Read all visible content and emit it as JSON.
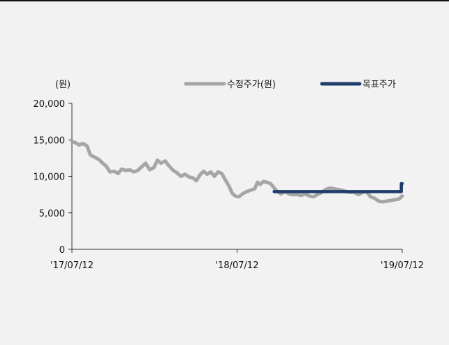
{
  "chart_data": {
    "type": "line",
    "unit_label": "(원)",
    "x_tick_labels": [
      "'17/07/12",
      "'18/07/12",
      "'19/07/12"
    ],
    "x_range": [
      "2017-07-12",
      "2019-07-12"
    ],
    "y_ticks": [
      0,
      5000,
      10000,
      15000,
      20000
    ],
    "y_tick_labels": [
      "0",
      "5,000",
      "10,000",
      "15,000",
      "20,000"
    ],
    "ylim": [
      0,
      20000
    ],
    "grid": false,
    "legend_position": "top",
    "series": [
      {
        "name": "수정주가(원)",
        "color": "#a6a6a6",
        "style": "line",
        "points": [
          [
            "2017-07-12",
            14800
          ],
          [
            "2017-07-20",
            14600
          ],
          [
            "2017-07-28",
            14300
          ],
          [
            "2017-08-05",
            14500
          ],
          [
            "2017-08-14",
            14200
          ],
          [
            "2017-08-22",
            12900
          ],
          [
            "2017-09-01",
            12600
          ],
          [
            "2017-09-10",
            12300
          ],
          [
            "2017-09-18",
            11800
          ],
          [
            "2017-09-26",
            11400
          ],
          [
            "2017-10-04",
            10600
          ],
          [
            "2017-10-13",
            10700
          ],
          [
            "2017-10-22",
            10400
          ],
          [
            "2017-10-30",
            11000
          ],
          [
            "2017-11-08",
            10800
          ],
          [
            "2017-11-17",
            10900
          ],
          [
            "2017-11-26",
            10600
          ],
          [
            "2017-12-04",
            10800
          ],
          [
            "2017-12-13",
            11300
          ],
          [
            "2017-12-22",
            11800
          ],
          [
            "2017-12-31",
            10900
          ],
          [
            "2018-01-09",
            11200
          ],
          [
            "2018-01-17",
            12200
          ],
          [
            "2018-01-25",
            11800
          ],
          [
            "2018-02-03",
            12100
          ],
          [
            "2018-02-12",
            11400
          ],
          [
            "2018-02-21",
            10800
          ],
          [
            "2018-03-01",
            10500
          ],
          [
            "2018-03-10",
            10000
          ],
          [
            "2018-03-19",
            10300
          ],
          [
            "2018-03-28",
            9900
          ],
          [
            "2018-04-05",
            9800
          ],
          [
            "2018-04-13",
            9400
          ],
          [
            "2018-04-21",
            10200
          ],
          [
            "2018-04-29",
            10700
          ],
          [
            "2018-05-07",
            10300
          ],
          [
            "2018-05-15",
            10600
          ],
          [
            "2018-05-23",
            10000
          ],
          [
            "2018-05-31",
            10600
          ],
          [
            "2018-06-08",
            10400
          ],
          [
            "2018-06-16",
            9500
          ],
          [
            "2018-06-24",
            8700
          ],
          [
            "2018-07-01",
            7700
          ],
          [
            "2018-07-08",
            7300
          ],
          [
            "2018-07-16",
            7200
          ],
          [
            "2018-07-24",
            7600
          ],
          [
            "2018-08-02",
            7900
          ],
          [
            "2018-08-11",
            8100
          ],
          [
            "2018-08-20",
            8300
          ],
          [
            "2018-08-26",
            9200
          ],
          [
            "2018-09-01",
            8900
          ],
          [
            "2018-09-08",
            9300
          ],
          [
            "2018-09-16",
            9200
          ],
          [
            "2018-09-24",
            9000
          ],
          [
            "2018-10-02",
            8400
          ],
          [
            "2018-10-09",
            7900
          ],
          [
            "2018-10-17",
            7600
          ],
          [
            "2018-10-26",
            7900
          ],
          [
            "2018-11-04",
            7600
          ],
          [
            "2018-11-13",
            7500
          ],
          [
            "2018-11-22",
            7500
          ],
          [
            "2018-12-01",
            7400
          ],
          [
            "2018-12-10",
            7600
          ],
          [
            "2018-12-19",
            7300
          ],
          [
            "2018-12-28",
            7200
          ],
          [
            "2019-01-06",
            7500
          ],
          [
            "2019-01-15",
            7800
          ],
          [
            "2019-01-24",
            8200
          ],
          [
            "2019-02-02",
            8400
          ],
          [
            "2019-02-11",
            8300
          ],
          [
            "2019-02-20",
            8200
          ],
          [
            "2019-03-01",
            8100
          ],
          [
            "2019-03-10",
            7900
          ],
          [
            "2019-03-19",
            7800
          ],
          [
            "2019-03-28",
            7800
          ],
          [
            "2019-04-06",
            7500
          ],
          [
            "2019-04-15",
            7800
          ],
          [
            "2019-04-24",
            7900
          ],
          [
            "2019-05-03",
            7200
          ],
          [
            "2019-05-12",
            7000
          ],
          [
            "2019-05-21",
            6600
          ],
          [
            "2019-05-30",
            6500
          ],
          [
            "2019-06-08",
            6600
          ],
          [
            "2019-06-17",
            6700
          ],
          [
            "2019-06-26",
            6800
          ],
          [
            "2019-07-05",
            6900
          ],
          [
            "2019-07-12",
            7300
          ]
        ]
      },
      {
        "name": "목표주가",
        "color": "#1f3d6b",
        "style": "step",
        "points": [
          [
            "2018-10-02",
            7900
          ],
          [
            "2019-07-10",
            7900
          ],
          [
            "2019-07-10",
            9000
          ],
          [
            "2019-07-12",
            9000
          ]
        ]
      }
    ]
  }
}
